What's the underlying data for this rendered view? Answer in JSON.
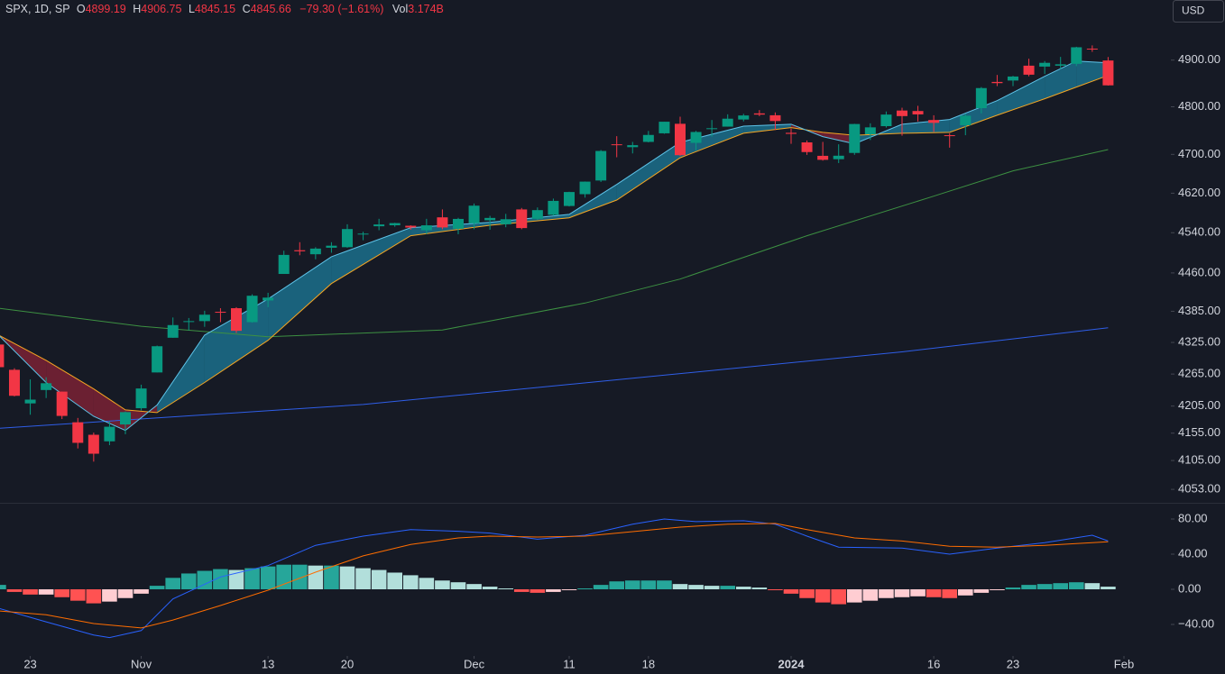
{
  "header": {
    "symbol": "SPX, 1D, SP",
    "open_label": "O",
    "open": "4899.19",
    "high_label": "H",
    "high": "4906.75",
    "low_label": "L",
    "low": "4845.15",
    "close_label": "C",
    "close": "4845.66",
    "change": "−79.30 (−1.61%)",
    "volume_label": "Vol",
    "volume": "3.174B"
  },
  "currency": "USD",
  "chart_data": [
    {
      "type": "candlestick",
      "log": true,
      "up_color": "#089981",
      "down_color": "#f23645",
      "xlim": [
        0.09,
        73.96
      ],
      "xticks": [
        {
          "value": 2,
          "label": "23"
        },
        {
          "value": 9,
          "label": "Nov"
        },
        {
          "value": 17,
          "label": "13"
        },
        {
          "value": 22,
          "label": "20"
        },
        {
          "value": 30,
          "label": "Dec"
        },
        {
          "value": 36,
          "label": "11"
        },
        {
          "value": 41,
          "label": "18"
        },
        {
          "value": 50,
          "label": "2024"
        },
        {
          "value": 59,
          "label": "16"
        },
        {
          "value": 64,
          "label": "23"
        },
        {
          "value": 71,
          "label": "Feb"
        }
      ],
      "ylim": [
        4029,
        5032
      ],
      "yticks": [
        {
          "value": 4053,
          "label": "4053.00"
        },
        {
          "value": 4105,
          "label": "4105.00"
        },
        {
          "value": 4155,
          "label": "4155.00"
        },
        {
          "value": 4205,
          "label": "4205.00"
        },
        {
          "value": 4265,
          "label": "4265.00"
        },
        {
          "value": 4325,
          "label": "4325.00"
        },
        {
          "value": 4385,
          "label": "4385.00"
        },
        {
          "value": 4460,
          "label": "4460.00"
        },
        {
          "value": 4540,
          "label": "4540.00"
        },
        {
          "value": 4620,
          "label": "4620.00"
        },
        {
          "value": 4700,
          "label": "4700.00"
        },
        {
          "value": 4800,
          "label": "4800.00"
        },
        {
          "value": 4900,
          "label": "4900.00"
        }
      ],
      "open": [
        4321,
        4273,
        4210,
        4235,
        4232,
        4175,
        4152,
        4140,
        4171,
        4201,
        4268,
        4334,
        4365,
        4366,
        4384,
        4391,
        4364,
        4406,
        4458,
        4505,
        4497,
        4510,
        4511,
        4538,
        4553,
        4555,
        4554,
        4545,
        4571,
        4548,
        4559,
        4565,
        4557,
        4587,
        4568,
        4576,
        4594,
        4618,
        4646,
        4721,
        4715,
        4726,
        4744,
        4764,
        4724,
        4753,
        4758,
        4773,
        4786,
        4782,
        4745,
        4725,
        4697,
        4690,
        4703,
        4742,
        4759,
        4792,
        4791,
        4772,
        4740,
        4761,
        4797,
        4853,
        4856,
        4888,
        4886,
        4888,
        4892,
        4925,
        4899.19
      ],
      "high": [
        4339,
        4276,
        4255,
        4259,
        4232,
        4183,
        4156,
        4177,
        4195,
        4245,
        4319,
        4373,
        4372,
        4386,
        4391,
        4393,
        4418,
        4421,
        4504,
        4521,
        4511,
        4521,
        4557,
        4542,
        4568,
        4560,
        4555,
        4568,
        4587,
        4570,
        4599,
        4574,
        4578,
        4590,
        4591,
        4609,
        4623,
        4644,
        4709,
        4738,
        4726,
        4749,
        4768,
        4779,
        4749,
        4772,
        4784,
        4785,
        4793,
        4788,
        4754,
        4729,
        4726,
        4721,
        4764,
        4765,
        4790,
        4798,
        4802,
        4782,
        4744,
        4785,
        4842,
        4868,
        4866,
        4903,
        4898,
        4907,
        4929,
        4932,
        4906.75
      ],
      "low": [
        4269,
        4223,
        4189,
        4220,
        4181,
        4127,
        4103,
        4133,
        4153,
        4197,
        4268,
        4334,
        4348,
        4355,
        4364,
        4343,
        4363,
        4393,
        4458,
        4495,
        4487,
        4500,
        4510,
        4525,
        4545,
        4552,
        4546,
        4537,
        4547,
        4537,
        4547,
        4546,
        4551,
        4547,
        4566,
        4574,
        4593,
        4611,
        4643,
        4694,
        4702,
        4725,
        4743,
        4697,
        4708,
        4737,
        4758,
        4769,
        4780,
        4751,
        4722,
        4699,
        4687,
        4682,
        4699,
        4730,
        4756,
        4739,
        4769,
        4747,
        4714,
        4740,
        4786,
        4844,
        4844,
        4865,
        4870,
        4881,
        4887,
        4918,
        4845.15
      ],
      "close": [
        4278,
        4224.16,
        4217.04,
        4247.68,
        4186.77,
        4137.23,
        4117.37,
        4166.82,
        4193.8,
        4237.86,
        4317.78,
        4358.34,
        4365.98,
        4378.38,
        4382.78,
        4347.35,
        4415.24,
        4411.55,
        4495.7,
        4502.88,
        4508.24,
        4514.02,
        4547.38,
        4538.19,
        4556.62,
        4559.34,
        4550.43,
        4554.89,
        4550.58,
        4567.8,
        4594.63,
        4569.78,
        4567.18,
        4549.34,
        4585.59,
        4604.37,
        4622.44,
        4643.7,
        4707.09,
        4719.55,
        4719.19,
        4740.56,
        4768.37,
        4698.35,
        4746.75,
        4754.63,
        4774.75,
        4781.58,
        4783.35,
        4769.83,
        4742.83,
        4704.81,
        4688.68,
        4697.24,
        4763.54,
        4756.5,
        4783.45,
        4780.24,
        4783.83,
        4765.98,
        4739.21,
        4780.94,
        4839.81,
        4850.43,
        4864.6,
        4868.55,
        4894.16,
        4890.97,
        4927.93,
        4924.97,
        4845.66
      ],
      "ribbon": {
        "up_fill": "#1f9fc4",
        "down_fill": "#b3263e",
        "fast": {
          "color": "#5ec3e8",
          "x": [
            0,
            3,
            6,
            8,
            10,
            13,
            17,
            21,
            26,
            31,
            36,
            39,
            43,
            47,
            50,
            52,
            54,
            57,
            60,
            63,
            66,
            68,
            70
          ],
          "values": [
            4339,
            4249,
            4186,
            4160,
            4207,
            4339,
            4409,
            4492,
            4550,
            4561,
            4577,
            4638,
            4725,
            4759,
            4763,
            4737,
            4722,
            4763,
            4773,
            4813,
            4865,
            4898,
            4894
          ]
        },
        "slow": {
          "color": "#f5a623",
          "x": [
            0,
            3,
            6,
            8,
            10,
            13,
            17,
            21,
            26,
            31,
            36,
            39,
            43,
            47,
            50,
            52,
            54,
            57,
            60,
            63,
            66,
            68,
            70
          ],
          "values": [
            4339,
            4291,
            4237,
            4198,
            4193,
            4249,
            4329,
            4439,
            4534,
            4555,
            4570,
            4606,
            4693,
            4744,
            4756,
            4746,
            4740,
            4744,
            4746,
            4782,
            4817,
            4842,
            4867
          ]
        }
      },
      "lines": [
        {
          "color": "#3d9142",
          "x": [
            0,
            9,
            17,
            28,
            37,
            43,
            51,
            59,
            64,
            70
          ],
          "values": [
            4391,
            4356,
            4336,
            4349,
            4401,
            4448,
            4534,
            4614,
            4666,
            4710
          ]
        },
        {
          "color": "#2f5ee8",
          "x": [
            0,
            23,
            40,
            57,
            70
          ],
          "values": [
            4164,
            4208,
            4257,
            4307,
            4353
          ]
        }
      ]
    },
    {
      "type": "macd",
      "ylim": [
        -75.9,
        96.4
      ],
      "yticks": [
        {
          "value": -40,
          "label": "−40.00"
        },
        {
          "value": 0,
          "label": "0.00"
        },
        {
          "value": 40,
          "label": "40.00"
        },
        {
          "value": 80,
          "label": "80.00"
        }
      ],
      "histogram": {
        "colors": {
          "pos_rising": "#26a69a",
          "pos_falling": "#b2dfdb",
          "neg_falling": "#ff5252",
          "neg_rising": "#ffcdd2"
        },
        "values": [
          5,
          -3,
          -6,
          -6,
          -9,
          -13,
          -16,
          -14,
          -10,
          -5,
          4,
          13,
          18,
          21,
          23,
          22,
          24,
          26,
          28,
          28,
          27,
          27,
          26,
          24,
          22,
          19,
          16,
          13,
          10,
          8,
          6,
          3,
          1,
          -3,
          -4,
          -3,
          -1,
          1,
          5,
          9,
          10,
          10,
          10,
          6,
          5,
          4,
          4,
          3,
          2,
          -1,
          -5,
          -10,
          -15,
          -17,
          -15,
          -13,
          -10,
          -9,
          -8,
          -9,
          -10,
          -7,
          -4,
          -1,
          2,
          5,
          6,
          7,
          8,
          7,
          3
        ]
      },
      "lines": [
        {
          "color": "#2962ff",
          "x": [
            0,
            3,
            6,
            7,
            9,
            11,
            14,
            17,
            20,
            23,
            26,
            29,
            31,
            34,
            37,
            40,
            42,
            44,
            47,
            49,
            51,
            53,
            57,
            60,
            63,
            66,
            69,
            70
          ],
          "values": [
            -21.5,
            -37,
            -52,
            -55,
            -47,
            -11,
            14,
            27,
            50,
            60.5,
            68,
            66,
            64,
            57,
            61.5,
            74,
            80,
            77,
            78,
            74,
            60.5,
            48,
            47,
            40,
            47,
            53,
            61.5,
            55
          ]
        },
        {
          "color": "#ff6d00",
          "x": [
            0,
            3,
            6,
            9,
            11,
            14,
            17,
            20,
            23,
            26,
            29,
            31,
            34,
            37,
            40,
            43,
            46,
            49,
            51,
            54,
            57,
            60,
            63,
            66,
            70
          ],
          "values": [
            -24.6,
            -29,
            -39,
            -44,
            -35,
            -18.5,
            -1,
            19.5,
            38,
            51,
            58.5,
            60.5,
            59.5,
            60.5,
            65.6,
            70.8,
            74,
            75,
            68,
            58.5,
            55,
            49,
            48,
            50,
            54
          ]
        }
      ]
    }
  ]
}
